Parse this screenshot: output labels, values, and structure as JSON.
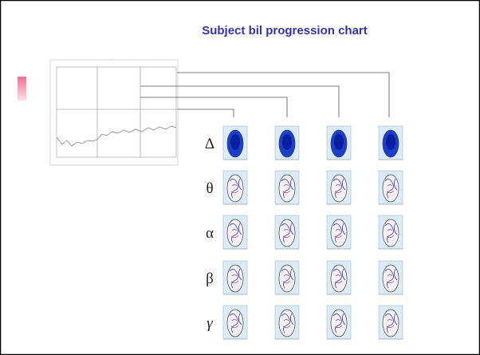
{
  "header": {
    "title": "Subject bil progression chart"
  },
  "rows": [
    {
      "label": "Δ"
    },
    {
      "label": "θ"
    },
    {
      "label": "α"
    },
    {
      "label": "β"
    },
    {
      "label": "γ"
    }
  ]
}
